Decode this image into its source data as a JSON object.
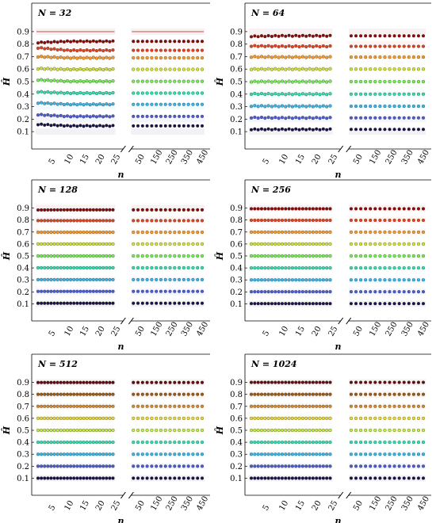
{
  "chart_data": [
    {
      "type": "scatter",
      "title": "N = 32",
      "xlabel": "n",
      "ylabel": "Ĥ",
      "ylim": [
        0.05,
        0.95
      ],
      "yticks": [
        "0.1",
        "0.2",
        "0.3",
        "0.4",
        "0.5",
        "0.6",
        "0.7",
        "0.8",
        "0.9"
      ],
      "left_xticks": [
        "5",
        "10",
        "15",
        "20",
        "25"
      ],
      "right_xticks": [
        "50",
        "150",
        "250",
        "350",
        "450"
      ],
      "reference_line": 0.9,
      "series": [
        {
          "H": 0.1,
          "left_start": 0.158,
          "right": 0.146,
          "color": "#1a1446"
        },
        {
          "H": 0.2,
          "left_start": 0.236,
          "right": 0.222,
          "color": "#4a5dd6"
        },
        {
          "H": 0.3,
          "left_start": 0.33,
          "right": 0.318,
          "color": "#3ab5e6"
        },
        {
          "H": 0.4,
          "left_start": 0.418,
          "right": 0.408,
          "color": "#2ee0b0"
        },
        {
          "H": 0.5,
          "left_start": 0.514,
          "right": 0.502,
          "color": "#72f04e"
        },
        {
          "H": 0.6,
          "left_start": 0.604,
          "right": 0.598,
          "color": "#d4e33a"
        },
        {
          "H": 0.7,
          "left_start": 0.7,
          "right": 0.69,
          "color": "#f89a2a"
        },
        {
          "H": 0.8,
          "left_start": 0.77,
          "right": 0.75,
          "color": "#e8401a"
        },
        {
          "H": 0.9,
          "left_start": 0.812,
          "right": 0.822,
          "color": "#8a0a0a"
        }
      ]
    },
    {
      "type": "scatter",
      "title": "N = 64",
      "xlabel": "n",
      "ylabel": "Ĥ",
      "ylim": [
        0.05,
        0.95
      ],
      "yticks": [
        "0.1",
        "0.2",
        "0.3",
        "0.4",
        "0.5",
        "0.6",
        "0.7",
        "0.8",
        "0.9"
      ],
      "left_xticks": [
        "5",
        "10",
        "15",
        "20",
        "25"
      ],
      "right_xticks": [
        "50",
        "150",
        "250",
        "350",
        "450"
      ],
      "reference_line": null,
      "series": [
        {
          "H": 0.1,
          "left_start": 0.118,
          "right": 0.118,
          "color": "#1a1446"
        },
        {
          "H": 0.2,
          "left_start": 0.212,
          "right": 0.21,
          "color": "#4a5dd6"
        },
        {
          "H": 0.3,
          "left_start": 0.305,
          "right": 0.303,
          "color": "#3ab5e6"
        },
        {
          "H": 0.4,
          "left_start": 0.402,
          "right": 0.4,
          "color": "#2ee0b0"
        },
        {
          "H": 0.5,
          "left_start": 0.5,
          "right": 0.5,
          "color": "#72f04e"
        },
        {
          "H": 0.6,
          "left_start": 0.6,
          "right": 0.6,
          "color": "#d4e33a"
        },
        {
          "H": 0.7,
          "left_start": 0.698,
          "right": 0.696,
          "color": "#f89a2a"
        },
        {
          "H": 0.8,
          "left_start": 0.785,
          "right": 0.782,
          "color": "#e8401a"
        },
        {
          "H": 0.9,
          "left_start": 0.862,
          "right": 0.866,
          "color": "#8a0a0a"
        }
      ]
    },
    {
      "type": "scatter",
      "title": "N = 128",
      "xlabel": "n",
      "ylabel": "Ĥ",
      "ylim": [
        0.05,
        0.95
      ],
      "yticks": [
        "0.1",
        "0.2",
        "0.3",
        "0.4",
        "0.5",
        "0.6",
        "0.7",
        "0.8",
        "0.9"
      ],
      "left_xticks": [
        "5",
        "10",
        "15",
        "20",
        "25"
      ],
      "right_xticks": [
        "50",
        "150",
        "250",
        "350",
        "450"
      ],
      "reference_line": null,
      "series": [
        {
          "H": 0.1,
          "left_start": 0.105,
          "right": 0.105,
          "color": "#1a1446"
        },
        {
          "H": 0.2,
          "left_start": 0.204,
          "right": 0.204,
          "color": "#4a5dd6"
        },
        {
          "H": 0.3,
          "left_start": 0.302,
          "right": 0.302,
          "color": "#3ab5e6"
        },
        {
          "H": 0.4,
          "left_start": 0.401,
          "right": 0.401,
          "color": "#2ee0b0"
        },
        {
          "H": 0.5,
          "left_start": 0.5,
          "right": 0.5,
          "color": "#72f04e"
        },
        {
          "H": 0.6,
          "left_start": 0.6,
          "right": 0.6,
          "color": "#d4e33a"
        },
        {
          "H": 0.7,
          "left_start": 0.698,
          "right": 0.698,
          "color": "#f89a2a"
        },
        {
          "H": 0.8,
          "left_start": 0.795,
          "right": 0.795,
          "color": "#e8401a"
        },
        {
          "H": 0.9,
          "left_start": 0.884,
          "right": 0.885,
          "color": "#8a0a0a"
        }
      ]
    },
    {
      "type": "scatter",
      "title": "N = 256",
      "xlabel": "n",
      "ylabel": "Ĥ",
      "ylim": [
        0.05,
        0.95
      ],
      "yticks": [
        "0.1",
        "0.2",
        "0.3",
        "0.4",
        "0.5",
        "0.6",
        "0.7",
        "0.8",
        "0.9"
      ],
      "left_xticks": [
        "5",
        "10",
        "15",
        "20",
        "25"
      ],
      "right_xticks": [
        "50",
        "150",
        "250",
        "350",
        "450"
      ],
      "reference_line": null,
      "series": [
        {
          "H": 0.1,
          "left_start": 0.102,
          "right": 0.102,
          "color": "#1a1446"
        },
        {
          "H": 0.2,
          "left_start": 0.201,
          "right": 0.201,
          "color": "#4a5dd6"
        },
        {
          "H": 0.3,
          "left_start": 0.3,
          "right": 0.3,
          "color": "#3ab5e6"
        },
        {
          "H": 0.4,
          "left_start": 0.4,
          "right": 0.4,
          "color": "#2ee0b0"
        },
        {
          "H": 0.5,
          "left_start": 0.5,
          "right": 0.5,
          "color": "#72f04e"
        },
        {
          "H": 0.6,
          "left_start": 0.6,
          "right": 0.6,
          "color": "#d4e33a"
        },
        {
          "H": 0.7,
          "left_start": 0.699,
          "right": 0.699,
          "color": "#f89a2a"
        },
        {
          "H": 0.8,
          "left_start": 0.798,
          "right": 0.798,
          "color": "#e8401a"
        },
        {
          "H": 0.9,
          "left_start": 0.894,
          "right": 0.894,
          "color": "#8a0a0a"
        }
      ]
    },
    {
      "type": "scatter",
      "title": "N = 512",
      "xlabel": "n",
      "ylabel": "Ĥ",
      "ylim": [
        0.05,
        0.95
      ],
      "yticks": [
        "0.1",
        "0.2",
        "0.3",
        "0.4",
        "0.5",
        "0.6",
        "0.7",
        "0.8",
        "0.9"
      ],
      "left_xticks": [
        "5",
        "10",
        "15",
        "20",
        "25"
      ],
      "right_xticks": [
        "50",
        "150",
        "250",
        "350",
        "450"
      ],
      "reference_line": null,
      "series": [
        {
          "H": 0.1,
          "left_start": 0.1,
          "right": 0.1,
          "color": "#1a1446"
        },
        {
          "H": 0.2,
          "left_start": 0.2,
          "right": 0.2,
          "color": "#4a5dd6"
        },
        {
          "H": 0.3,
          "left_start": 0.3,
          "right": 0.3,
          "color": "#3ab5e6"
        },
        {
          "H": 0.4,
          "left_start": 0.4,
          "right": 0.4,
          "color": "#2ee0b0"
        },
        {
          "H": 0.5,
          "left_start": 0.5,
          "right": 0.5,
          "color": "#c8ec3a"
        },
        {
          "H": 0.6,
          "left_start": 0.6,
          "right": 0.6,
          "color": "#e8d83a"
        },
        {
          "H": 0.7,
          "left_start": 0.7,
          "right": 0.7,
          "color": "#d88a2a"
        },
        {
          "H": 0.8,
          "left_start": 0.8,
          "right": 0.8,
          "color": "#9a5a1a"
        },
        {
          "H": 0.9,
          "left_start": 0.899,
          "right": 0.899,
          "color": "#6a0a0a"
        }
      ]
    },
    {
      "type": "scatter",
      "title": "N = 1024",
      "xlabel": "n",
      "ylabel": "Ĥ",
      "ylim": [
        0.05,
        0.95
      ],
      "yticks": [
        "0.1",
        "0.2",
        "0.3",
        "0.4",
        "0.5",
        "0.6",
        "0.7",
        "0.8",
        "0.9"
      ],
      "left_xticks": [
        "5",
        "10",
        "15",
        "20",
        "25"
      ],
      "right_xticks": [
        "50",
        "150",
        "250",
        "350",
        "450"
      ],
      "reference_line": null,
      "series": [
        {
          "H": 0.1,
          "left_start": 0.1,
          "right": 0.1,
          "color": "#1a1446"
        },
        {
          "H": 0.2,
          "left_start": 0.2,
          "right": 0.2,
          "color": "#4a5dd6"
        },
        {
          "H": 0.3,
          "left_start": 0.3,
          "right": 0.3,
          "color": "#3ab5e6"
        },
        {
          "H": 0.4,
          "left_start": 0.4,
          "right": 0.4,
          "color": "#2ee0b0"
        },
        {
          "H": 0.5,
          "left_start": 0.5,
          "right": 0.5,
          "color": "#c8ec3a"
        },
        {
          "H": 0.6,
          "left_start": 0.6,
          "right": 0.6,
          "color": "#e8d83a"
        },
        {
          "H": 0.7,
          "left_start": 0.7,
          "right": 0.7,
          "color": "#d88a2a"
        },
        {
          "H": 0.8,
          "left_start": 0.8,
          "right": 0.8,
          "color": "#9a5a1a"
        },
        {
          "H": 0.9,
          "left_start": 0.9,
          "right": 0.9,
          "color": "#6a0a0a"
        }
      ]
    }
  ]
}
